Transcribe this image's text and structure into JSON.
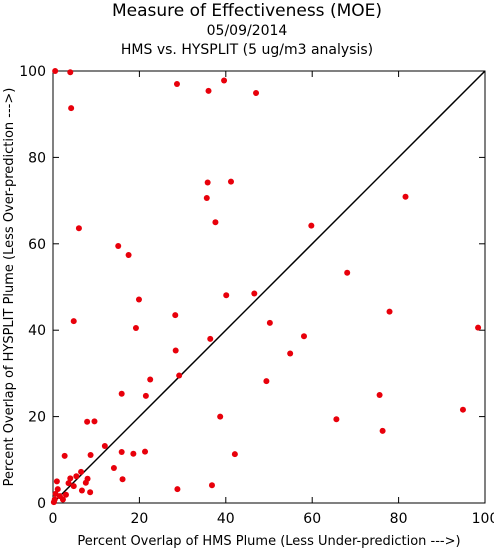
{
  "chart_data": {
    "type": "scatter",
    "title": "Measure of Effectiveness (MOE)",
    "subtitle": "05/09/2014",
    "subtitle2": "HMS vs. HYSPLIT  (5 ug/m3 analysis)",
    "xlabel": "Percent Overlap of HMS Plume (Less Under-prediction --->)",
    "ylabel": "Percent Overlap of HYSPLIT Plume (Less Over-prediction --->)",
    "xlim": [
      0,
      100
    ],
    "ylim": [
      0,
      100
    ],
    "xticks": [
      0,
      20,
      40,
      60,
      80,
      100
    ],
    "yticks": [
      0,
      20,
      40,
      60,
      80,
      100
    ],
    "diagonal_line": true,
    "point_color": "#e8000b",
    "points": [
      [
        0.5,
        100
      ],
      [
        4,
        99.7
      ],
      [
        4.2,
        91.4
      ],
      [
        6,
        63.6
      ],
      [
        4.8,
        42.1
      ],
      [
        28.7,
        97
      ],
      [
        36,
        95.4
      ],
      [
        39.6,
        97.8
      ],
      [
        47,
        94.9
      ],
      [
        35.8,
        74.2
      ],
      [
        41.2,
        74.4
      ],
      [
        35.6,
        70.6
      ],
      [
        37.6,
        65
      ],
      [
        15.1,
        59.5
      ],
      [
        17.5,
        57.4
      ],
      [
        19.9,
        47.1
      ],
      [
        19.2,
        40.5
      ],
      [
        28.3,
        43.5
      ],
      [
        28.4,
        35.3
      ],
      [
        36.4,
        38
      ],
      [
        40.1,
        48.1
      ],
      [
        46.6,
        48.5
      ],
      [
        50.2,
        41.7
      ],
      [
        54.9,
        34.6
      ],
      [
        58.1,
        38.6
      ],
      [
        59.8,
        64.2
      ],
      [
        68.1,
        53.3
      ],
      [
        77.9,
        44.3
      ],
      [
        81.6,
        70.9
      ],
      [
        98.4,
        40.6
      ],
      [
        94.9,
        21.6
      ],
      [
        75.6,
        25
      ],
      [
        76.3,
        16.7
      ],
      [
        65.6,
        19.4
      ],
      [
        49.4,
        28.2
      ],
      [
        38.7,
        20
      ],
      [
        42.1,
        11.3
      ],
      [
        29.2,
        29.5
      ],
      [
        22.5,
        28.6
      ],
      [
        21.5,
        24.8
      ],
      [
        21.3,
        11.9
      ],
      [
        15.9,
        25.3
      ],
      [
        7.9,
        18.8
      ],
      [
        9.6,
        18.9
      ],
      [
        12,
        13.2
      ],
      [
        14.1,
        8.1
      ],
      [
        15.9,
        11.8
      ],
      [
        18.6,
        11.4
      ],
      [
        16.1,
        5.5
      ],
      [
        28.8,
        3.2
      ],
      [
        36.8,
        4.1
      ],
      [
        8.7,
        11.1
      ],
      [
        2.7,
        10.9
      ],
      [
        0.9,
        5
      ],
      [
        1.1,
        3.2
      ],
      [
        0.6,
        2.1
      ],
      [
        0.4,
        0.8
      ],
      [
        0.2,
        0.2
      ],
      [
        1.6,
        1.6
      ],
      [
        2.3,
        0.8
      ],
      [
        3,
        1.9
      ],
      [
        3.6,
        4.6
      ],
      [
        4.8,
        3.9
      ],
      [
        5.4,
        6.2
      ],
      [
        6.5,
        7.2
      ],
      [
        7.6,
        4.7
      ],
      [
        8,
        5.6
      ],
      [
        6.7,
        2.9
      ],
      [
        8.6,
        2.5
      ],
      [
        4,
        5.7
      ]
    ]
  }
}
